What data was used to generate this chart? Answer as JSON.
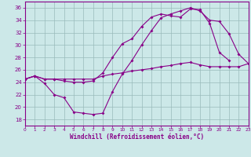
{
  "background_color": "#cce8e8",
  "line_color": "#880088",
  "grid_color": "#99bbbb",
  "xlim": [
    0,
    23
  ],
  "ylim": [
    17,
    37
  ],
  "yticks": [
    18,
    20,
    22,
    24,
    26,
    28,
    30,
    32,
    34,
    36
  ],
  "xticks": [
    0,
    1,
    2,
    3,
    4,
    5,
    6,
    7,
    8,
    9,
    10,
    11,
    12,
    13,
    14,
    15,
    16,
    17,
    18,
    19,
    20,
    21,
    22,
    23
  ],
  "xlabel": "Windchill (Refroidissement éolien,°C)",
  "hours": [
    0,
    1,
    2,
    3,
    4,
    5,
    6,
    7,
    8,
    9,
    10,
    11,
    12,
    13,
    14,
    15,
    16,
    17,
    18,
    19,
    20,
    21,
    22,
    23
  ],
  "line1_y": [
    24.5,
    25.0,
    23.8,
    22.0,
    21.5,
    19.2,
    19.0,
    18.8,
    19.0,
    22.5,
    25.3,
    27.5,
    30.0,
    32.3,
    34.4,
    35.0,
    35.5,
    36.0,
    35.5,
    34.0,
    33.8,
    31.8,
    28.5,
    27.0
  ],
  "line2_y": [
    24.5,
    25.0,
    24.5,
    24.5,
    24.5,
    24.5,
    24.5,
    24.5,
    25.0,
    25.3,
    25.5,
    25.8,
    26.0,
    26.2,
    26.5,
    26.7,
    27.0,
    27.2,
    26.8,
    26.5,
    26.5,
    26.5,
    26.5,
    27.0
  ],
  "line3_x": [
    0,
    1,
    2,
    3,
    4,
    5,
    6,
    7,
    8,
    9,
    10,
    11,
    12,
    13,
    14,
    15,
    16,
    17,
    18,
    19,
    20,
    21
  ],
  "line3_y": [
    24.5,
    25.0,
    24.5,
    24.5,
    24.2,
    24.0,
    24.0,
    24.2,
    25.5,
    28.0,
    30.2,
    31.0,
    33.0,
    34.5,
    35.0,
    34.7,
    34.5,
    35.8,
    35.7,
    33.5,
    28.8,
    27.5
  ]
}
